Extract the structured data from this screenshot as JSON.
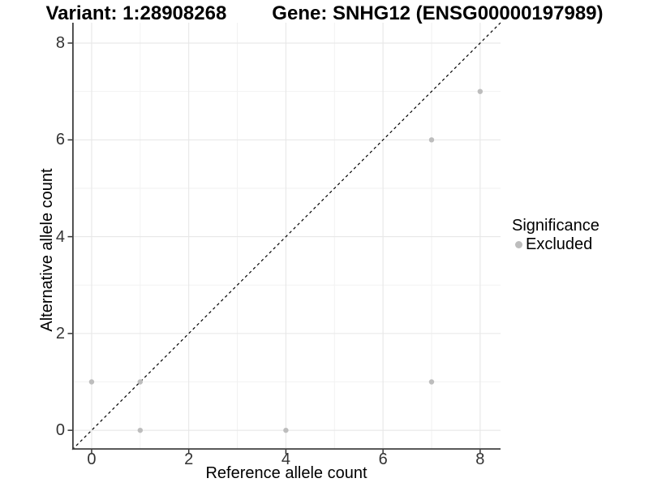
{
  "chart_data": {
    "type": "scatter",
    "title": {
      "left": "Variant: 1:28908268",
      "right": "Gene: SNHG12 (ENSG00000197989)"
    },
    "xlabel": "Reference allele count",
    "ylabel": "Alternative allele count",
    "x_ticks": [
      0,
      2,
      4,
      6,
      8
    ],
    "y_ticks": [
      0,
      2,
      4,
      6,
      8
    ],
    "x_minor_gridlines": [
      1,
      3,
      5,
      7
    ],
    "y_minor_gridlines": [
      1,
      3,
      5,
      7
    ],
    "xlim": [
      -0.4,
      8.42
    ],
    "ylim": [
      -0.4,
      8.42
    ],
    "grid": "major+minor",
    "series": [
      {
        "name": "Excluded",
        "color": "#BDBDBD",
        "point_radius": 3.2,
        "points": [
          {
            "x": 0,
            "y": 1
          },
          {
            "x": 1,
            "y": 0
          },
          {
            "x": 1,
            "y": 1
          },
          {
            "x": 4,
            "y": 0
          },
          {
            "x": 7,
            "y": 1
          },
          {
            "x": 7,
            "y": 6
          },
          {
            "x": 8,
            "y": 7
          }
        ]
      }
    ],
    "identity_line": {
      "slope": 1,
      "intercept": 0,
      "style": "dashed",
      "color": "#000000"
    },
    "legend": {
      "title": "Significance",
      "position": "right",
      "items": [
        {
          "label": "Excluded",
          "color": "#BDBDBD"
        }
      ]
    },
    "colors": {
      "background": "#FFFFFF",
      "grid_major": "#E7E7E7",
      "grid_minor": "#F2F2F2",
      "axis_line": "#404040",
      "tick_mark": "#333333",
      "tick_text": "#333333"
    }
  }
}
